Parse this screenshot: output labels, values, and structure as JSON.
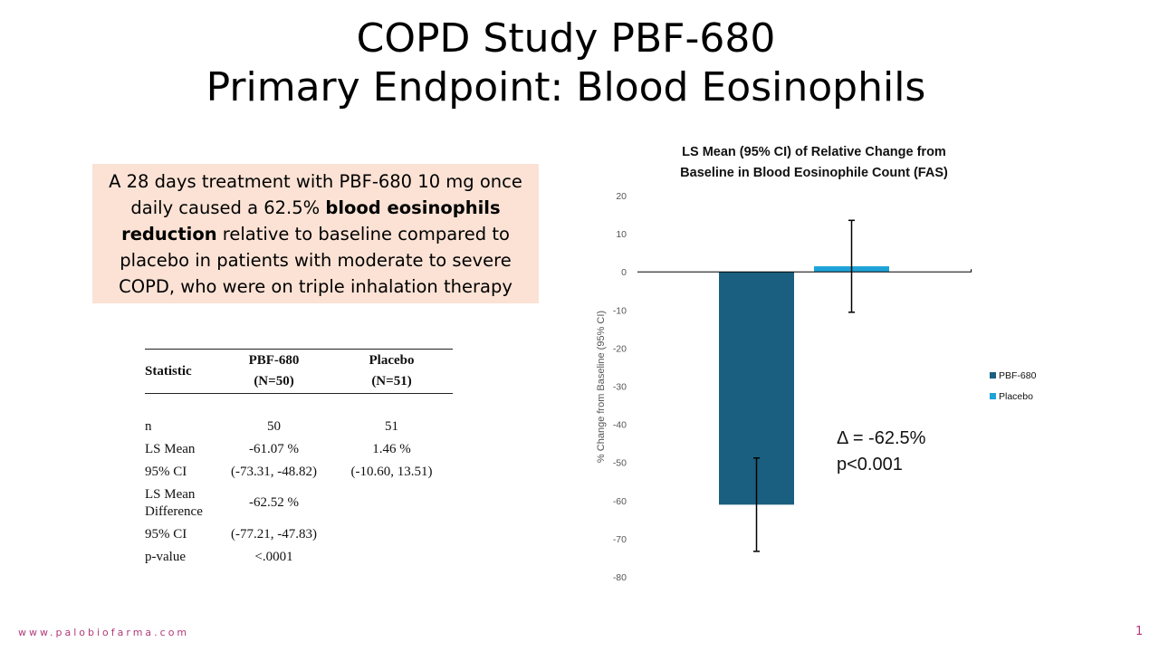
{
  "slide": {
    "title_line1": "COPD Study PBF-680",
    "title_line2": "Primary Endpoint: Blood Eosinophils",
    "callout": {
      "part1": "A 28 days treatment with PBF-680 10 mg once daily caused a 62.5% ",
      "bold": "blood eosinophils reduction",
      "part2": " relative to baseline compared to placebo in patients with moderate to severe COPD, who were on triple inhalation therapy"
    },
    "footer_url": "www.palobiofarma.com",
    "page_number": "1"
  },
  "table": {
    "header": {
      "statistic": "Statistic",
      "col1_name": "PBF-680",
      "col1_n": "(N=50)",
      "col2_name": "Placebo",
      "col2_n": "(N=51)"
    },
    "rows": [
      {
        "label": "n",
        "col1": "50",
        "col2": "51"
      },
      {
        "label": "LS Mean",
        "col1": "-61.07 %",
        "col2": "1.46 %"
      },
      {
        "label": "95% CI",
        "col1": "(-73.31, -48.82)",
        "col2": "(-10.60, 13.51)"
      },
      {
        "label_line1": "LS Mean",
        "label_line2": "Difference",
        "col1": "-62.52 %",
        "col2": ""
      },
      {
        "label": "95% CI",
        "col1": "(-77.21, -47.83)",
        "col2": ""
      },
      {
        "label": "p-value",
        "col1": "<.0001",
        "col2": ""
      }
    ]
  },
  "chart_data": {
    "type": "bar",
    "title_line1": "LS Mean (95% CI) of Relative Change from",
    "title_line2": "Baseline in Blood Eosinophile Count (FAS)",
    "ylabel": "% Change from Baseline (95% CI)",
    "ylim": [
      -80,
      20
    ],
    "yticks": [
      20,
      10,
      0,
      -10,
      -20,
      -30,
      -40,
      -50,
      -60,
      -70,
      -80
    ],
    "grid": false,
    "legend_position": "right",
    "series": [
      {
        "name": "PBF-680",
        "value": -61.07,
        "ci_low": -73.31,
        "ci_high": -48.82,
        "color": "#1a5f7f"
      },
      {
        "name": "Placebo",
        "value": 1.46,
        "ci_low": -10.6,
        "ci_high": 13.51,
        "color": "#1fa3d9"
      }
    ],
    "annotation_line1": "Δ = -62.5%",
    "annotation_line2": "p<0.001"
  }
}
